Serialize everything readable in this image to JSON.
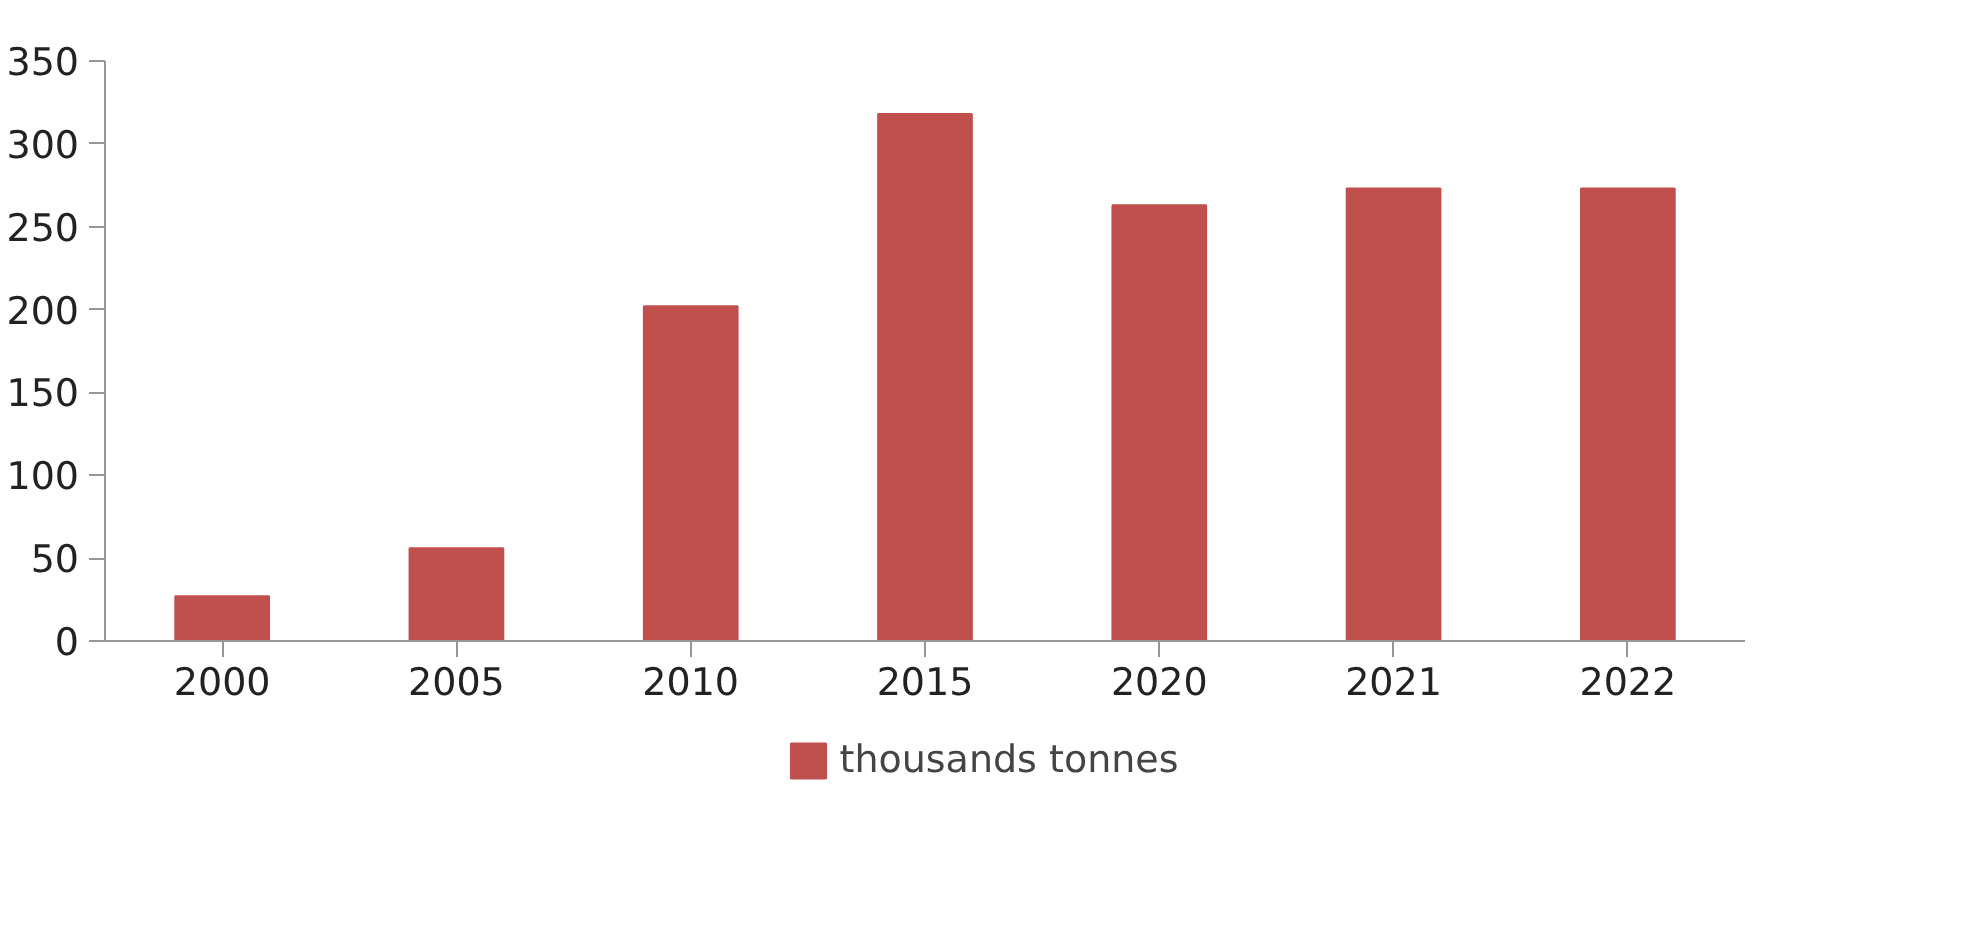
{
  "chart_data": {
    "type": "bar",
    "categories": [
      "2000",
      "2005",
      "2010",
      "2015",
      "2020",
      "2021",
      "2022"
    ],
    "series": [
      {
        "name": "thousands tonnes",
        "color": "#c0504d",
        "values": [
          27,
          56,
          202,
          318,
          263,
          273,
          273
        ]
      }
    ],
    "ylim": [
      0,
      350
    ],
    "yticks": [
      0,
      50,
      100,
      150,
      200,
      250,
      300,
      350
    ],
    "grid": false,
    "legend": "bottom"
  }
}
